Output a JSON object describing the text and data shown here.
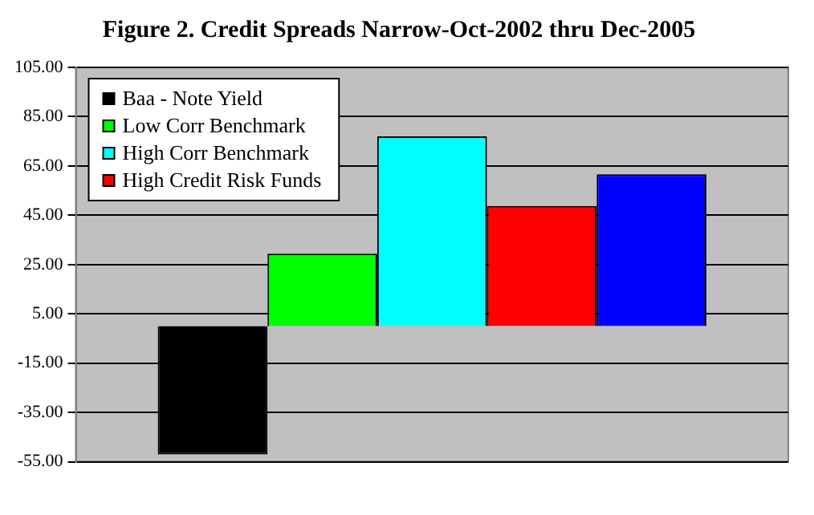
{
  "chart_data": {
    "type": "bar",
    "title": "Figure 2. Credit Spreads Narrow-Oct-2002 thru Dec-2005",
    "categories": [
      null
    ],
    "series": [
      {
        "name": "Baa - Note Yield",
        "color": "#000000",
        "values": [
          -52
        ]
      },
      {
        "name": "Low Corr Benchmark",
        "color": "#00ff00",
        "values": [
          29.4
        ]
      },
      {
        "name": "High Corr Benchmark",
        "color": "#00ffff",
        "values": [
          77
        ]
      },
      {
        "name": "High Credit Risk Funds",
        "color": "#ff0000",
        "values": [
          48.8
        ]
      },
      {
        "color": "#0000ff",
        "values": [
          61.6
        ]
      }
    ],
    "ylim": [
      -55,
      105
    ],
    "yticks": [
      {
        "value": -55,
        "label": "-55.00"
      },
      {
        "value": -35,
        "label": "-35.00"
      },
      {
        "value": -15,
        "label": "-15.00"
      },
      {
        "value": 5,
        "label": "5.00"
      },
      {
        "value": 25,
        "label": "25.00"
      },
      {
        "value": 45,
        "label": "45.00"
      },
      {
        "value": 65,
        "label": "65.00"
      },
      {
        "value": 85,
        "label": "85.00"
      },
      {
        "value": 105,
        "label": "105.00"
      }
    ],
    "grid": "y",
    "legend": "top left"
  }
}
